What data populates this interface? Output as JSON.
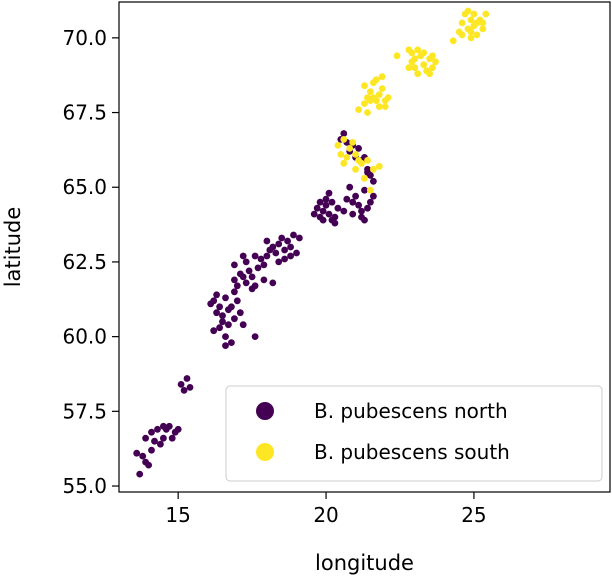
{
  "chart_data": {
    "type": "scatter",
    "xlabel": "longitude",
    "ylabel": "latitude",
    "xlim": [
      13.0,
      29.6
    ],
    "ylim": [
      54.8,
      71.2
    ],
    "xticks": [
      15,
      20,
      25
    ],
    "yticks": [
      55.0,
      57.5,
      60.0,
      62.5,
      65.0,
      67.5,
      70.0
    ],
    "xtick_labels": [
      "15",
      "20",
      "25"
    ],
    "ytick_labels": [
      "55.0",
      "57.5",
      "60.0",
      "62.5",
      "65.0",
      "67.5",
      "70.0"
    ],
    "grid": false,
    "legend_position": "lower-right",
    "series": [
      {
        "name": "B. pubescens north",
        "color": "#440154",
        "points": [
          [
            13.6,
            56.1
          ],
          [
            13.8,
            56.0
          ],
          [
            13.9,
            55.8
          ],
          [
            14.0,
            55.7
          ],
          [
            13.7,
            55.4
          ],
          [
            14.1,
            56.2
          ],
          [
            13.9,
            56.6
          ],
          [
            14.1,
            56.8
          ],
          [
            14.3,
            56.9
          ],
          [
            14.5,
            56.6
          ],
          [
            14.4,
            56.4
          ],
          [
            14.2,
            56.5
          ],
          [
            14.6,
            56.9
          ],
          [
            14.7,
            57.0
          ],
          [
            14.9,
            56.8
          ],
          [
            15.0,
            56.9
          ],
          [
            14.8,
            56.6
          ],
          [
            14.5,
            57.0
          ],
          [
            15.1,
            58.4
          ],
          [
            15.2,
            58.2
          ],
          [
            15.4,
            58.3
          ],
          [
            15.3,
            58.6
          ],
          [
            16.1,
            61.1
          ],
          [
            16.2,
            61.2
          ],
          [
            16.4,
            61.0
          ],
          [
            16.3,
            60.8
          ],
          [
            16.5,
            60.7
          ],
          [
            16.6,
            61.3
          ],
          [
            16.7,
            60.9
          ],
          [
            16.8,
            61.0
          ],
          [
            16.5,
            60.5
          ],
          [
            16.7,
            60.4
          ],
          [
            16.9,
            60.6
          ],
          [
            16.4,
            60.3
          ],
          [
            16.2,
            60.2
          ],
          [
            16.6,
            60.0
          ],
          [
            16.8,
            59.8
          ],
          [
            16.6,
            59.7
          ],
          [
            17.0,
            61.2
          ],
          [
            17.1,
            60.8
          ],
          [
            17.2,
            60.4
          ],
          [
            17.6,
            60.0
          ],
          [
            16.9,
            61.5
          ],
          [
            16.3,
            61.4
          ],
          [
            16.9,
            61.9
          ],
          [
            17.1,
            62.1
          ],
          [
            17.2,
            62.0
          ],
          [
            17.3,
            61.8
          ],
          [
            17.4,
            62.2
          ],
          [
            17.5,
            62.0
          ],
          [
            17.6,
            61.7
          ],
          [
            17.7,
            62.3
          ],
          [
            17.8,
            62.6
          ],
          [
            17.9,
            62.4
          ],
          [
            18.0,
            62.7
          ],
          [
            18.1,
            62.9
          ],
          [
            18.2,
            63.0
          ],
          [
            18.3,
            62.8
          ],
          [
            18.4,
            63.1
          ],
          [
            18.5,
            63.3
          ],
          [
            18.6,
            62.9
          ],
          [
            18.7,
            63.2
          ],
          [
            18.8,
            63.0
          ],
          [
            18.9,
            63.4
          ],
          [
            19.0,
            62.8
          ],
          [
            19.1,
            63.3
          ],
          [
            18.6,
            62.6
          ],
          [
            17.3,
            62.5
          ],
          [
            17.6,
            62.7
          ],
          [
            17.9,
            61.9
          ],
          [
            18.2,
            61.8
          ],
          [
            16.9,
            62.4
          ],
          [
            17.2,
            62.7
          ],
          [
            18.0,
            63.2
          ],
          [
            18.4,
            62.5
          ],
          [
            18.8,
            62.7
          ],
          [
            17.5,
            61.6
          ],
          [
            17.0,
            61.7
          ],
          [
            19.6,
            64.1
          ],
          [
            19.7,
            64.3
          ],
          [
            19.8,
            64.0
          ],
          [
            19.9,
            64.2
          ],
          [
            20.0,
            64.4
          ],
          [
            20.1,
            64.1
          ],
          [
            20.2,
            63.9
          ],
          [
            20.3,
            64.0
          ],
          [
            20.0,
            64.6
          ],
          [
            20.2,
            64.5
          ],
          [
            20.1,
            64.8
          ],
          [
            19.9,
            63.9
          ],
          [
            20.3,
            63.8
          ],
          [
            19.8,
            64.5
          ],
          [
            20.5,
            66.6
          ],
          [
            20.6,
            66.8
          ],
          [
            20.7,
            66.5
          ],
          [
            20.8,
            66.2
          ],
          [
            20.9,
            66.4
          ],
          [
            21.0,
            66.0
          ],
          [
            21.1,
            66.3
          ],
          [
            21.2,
            65.9
          ],
          [
            21.3,
            66.0
          ],
          [
            21.4,
            65.6
          ],
          [
            21.5,
            65.4
          ],
          [
            21.6,
            65.2
          ],
          [
            21.3,
            64.9
          ],
          [
            21.0,
            64.7
          ],
          [
            21.1,
            64.4
          ],
          [
            20.9,
            64.5
          ],
          [
            20.7,
            64.6
          ],
          [
            21.2,
            64.2
          ],
          [
            21.5,
            64.5
          ],
          [
            21.6,
            64.7
          ],
          [
            21.4,
            64.3
          ],
          [
            21.2,
            64.0
          ],
          [
            20.9,
            64.1
          ],
          [
            21.4,
            65.5
          ],
          [
            20.4,
            64.3
          ],
          [
            20.6,
            64.2
          ],
          [
            21.3,
            63.9
          ],
          [
            20.8,
            65.0
          ]
        ]
      },
      {
        "name": "B. pubescens south",
        "color": "#fde725",
        "points": [
          [
            20.4,
            66.4
          ],
          [
            20.5,
            66.1
          ],
          [
            20.6,
            66.6
          ],
          [
            20.7,
            66.0
          ],
          [
            20.8,
            66.3
          ],
          [
            20.9,
            66.5
          ],
          [
            21.0,
            66.1
          ],
          [
            21.1,
            65.9
          ],
          [
            21.2,
            65.8
          ],
          [
            21.4,
            65.9
          ],
          [
            21.6,
            65.6
          ],
          [
            21.8,
            65.7
          ],
          [
            21.3,
            65.3
          ],
          [
            21.5,
            64.9
          ],
          [
            20.6,
            65.8
          ],
          [
            21.0,
            65.6
          ],
          [
            21.1,
            67.6
          ],
          [
            21.3,
            67.8
          ],
          [
            21.4,
            68.0
          ],
          [
            21.5,
            68.2
          ],
          [
            21.6,
            68.5
          ],
          [
            21.7,
            67.9
          ],
          [
            21.8,
            68.1
          ],
          [
            21.9,
            68.3
          ],
          [
            22.0,
            67.9
          ],
          [
            22.1,
            68.0
          ],
          [
            21.7,
            68.6
          ],
          [
            21.9,
            68.7
          ],
          [
            21.4,
            67.5
          ],
          [
            22.0,
            67.7
          ],
          [
            21.5,
            67.9
          ],
          [
            21.8,
            67.7
          ],
          [
            21.6,
            68.0
          ],
          [
            21.3,
            68.4
          ],
          [
            22.4,
            69.4
          ],
          [
            22.8,
            69.6
          ],
          [
            22.9,
            69.2
          ],
          [
            23.0,
            69.0
          ],
          [
            23.1,
            68.8
          ],
          [
            23.2,
            69.4
          ],
          [
            23.3,
            69.1
          ],
          [
            23.4,
            68.9
          ],
          [
            23.5,
            69.3
          ],
          [
            23.6,
            69.0
          ],
          [
            23.7,
            69.2
          ],
          [
            22.9,
            69.5
          ],
          [
            23.1,
            69.6
          ],
          [
            23.5,
            68.8
          ],
          [
            22.8,
            69.0
          ],
          [
            23.3,
            69.5
          ],
          [
            23.0,
            69.3
          ],
          [
            23.6,
            69.4
          ],
          [
            24.3,
            69.9
          ],
          [
            24.5,
            70.2
          ],
          [
            24.6,
            70.5
          ],
          [
            24.7,
            70.8
          ],
          [
            24.8,
            70.3
          ],
          [
            24.9,
            70.6
          ],
          [
            25.0,
            70.4
          ],
          [
            25.1,
            70.1
          ],
          [
            25.2,
            70.6
          ],
          [
            25.3,
            70.3
          ],
          [
            24.9,
            70.0
          ],
          [
            25.0,
            70.8
          ],
          [
            24.8,
            70.9
          ],
          [
            25.1,
            70.5
          ],
          [
            24.6,
            70.1
          ],
          [
            25.4,
            70.8
          ],
          [
            25.3,
            70.5
          ],
          [
            24.9,
            70.2
          ]
        ]
      }
    ]
  }
}
